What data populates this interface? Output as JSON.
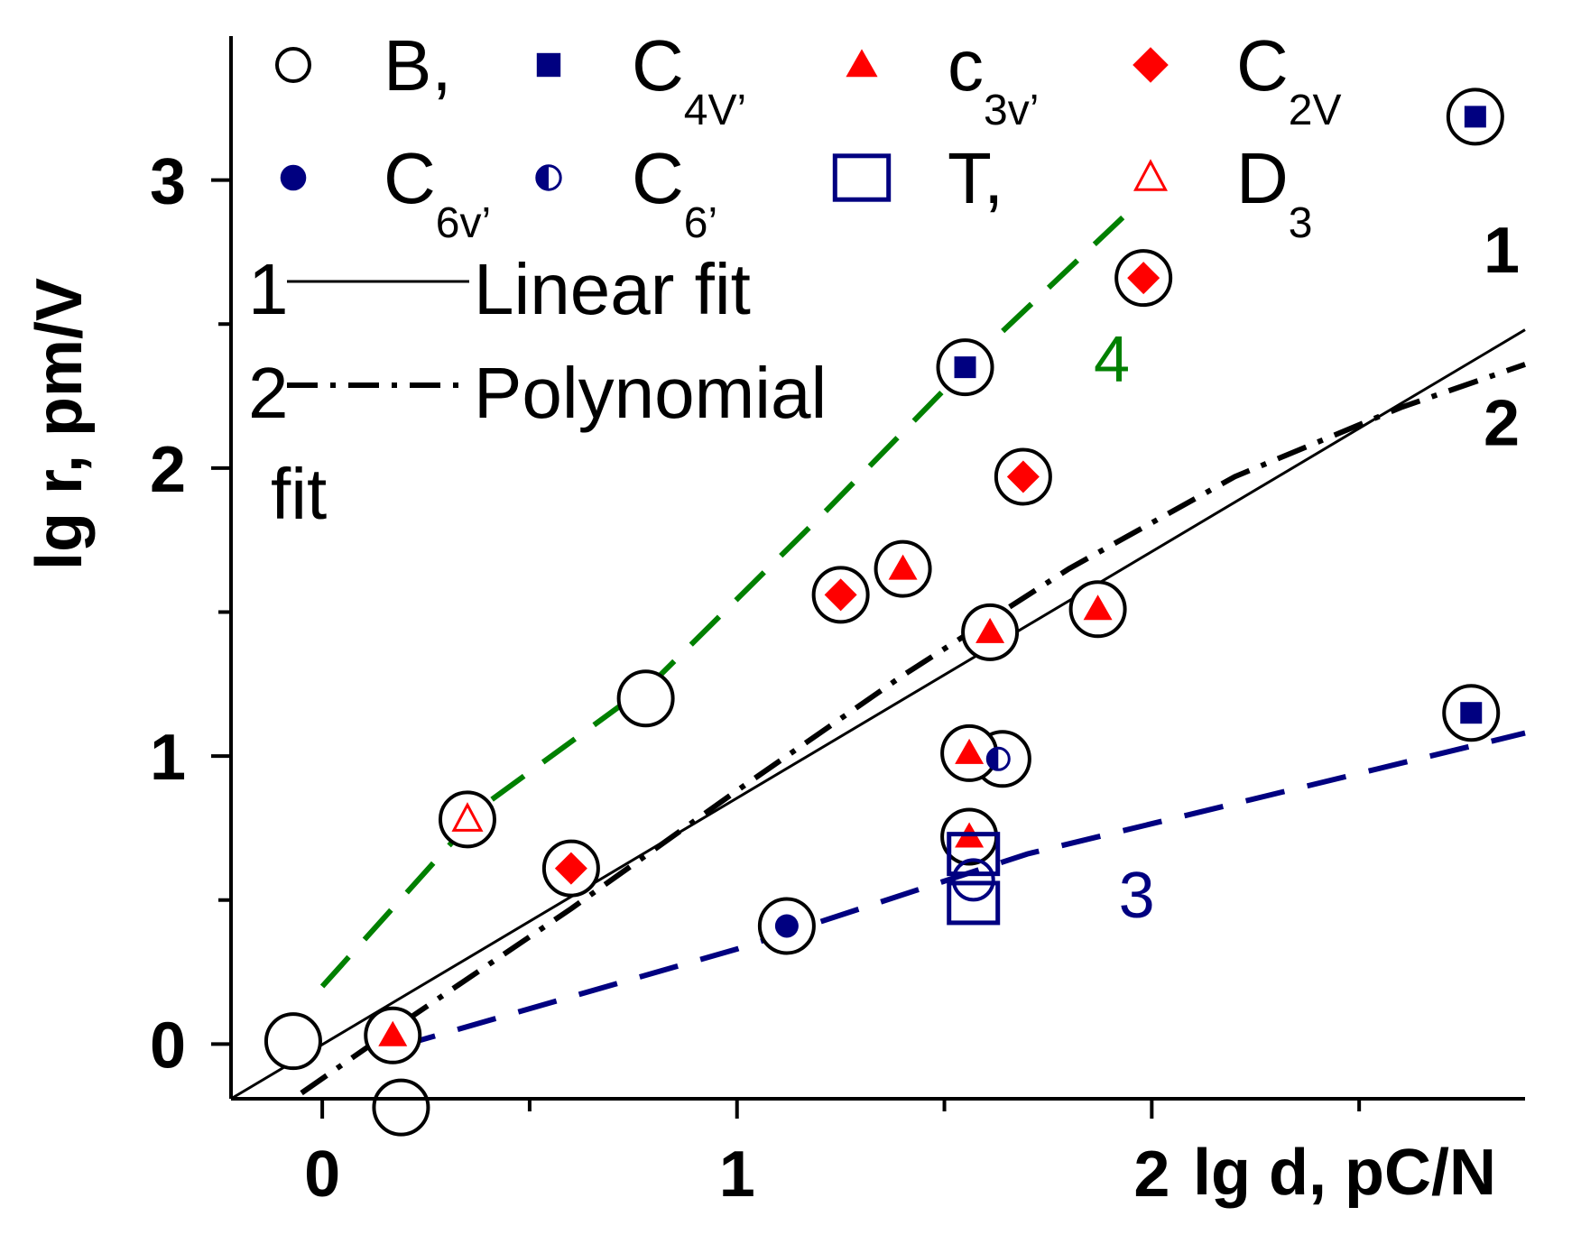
{
  "chart_data": {
    "type": "scatter",
    "xlabel": "lg d, pC/N",
    "ylabel": "lg r, pm/V",
    "xlim": [
      -0.22,
      2.9
    ],
    "ylim": [
      -0.19,
      3.5
    ],
    "x_ticks": [
      {
        "value": 0,
        "label": "0"
      },
      {
        "value": 1,
        "label": "1"
      },
      {
        "value": 2,
        "label": "2"
      }
    ],
    "y_ticks": [
      {
        "value": 0,
        "label": "0"
      },
      {
        "value": 1,
        "label": "1"
      },
      {
        "value": 2,
        "label": "2"
      },
      {
        "value": 3,
        "label": "3"
      }
    ],
    "x_minor": [
      0.5,
      1.5,
      2.5
    ],
    "y_minor": [
      0.5,
      1.5,
      2.5
    ],
    "grid": false,
    "legend": {
      "placement": "top-left",
      "symbols": [
        {
          "marker": "circle-open",
          "label": "B,",
          "sub": "",
          "color": "#000000"
        },
        {
          "marker": "square-filled",
          "label": "C",
          "sub": "4V’",
          "color": "#000080"
        },
        {
          "marker": "triangle-filled",
          "label": "c",
          "sub": "3v’",
          "color": "#ff0000"
        },
        {
          "marker": "diamond-filled",
          "label": "C",
          "sub": "2V",
          "color": "#ff0000"
        },
        {
          "marker": "circle-filled",
          "label": "C",
          "sub": "6v’",
          "color": "#000080"
        },
        {
          "marker": "circle-half",
          "label": "C",
          "sub": "6’",
          "color": "#000080"
        },
        {
          "marker": "square-open",
          "label": "T,",
          "sub": "",
          "color": "#000080"
        },
        {
          "marker": "triangle-open",
          "label": "D",
          "sub": "3",
          "color": "#ff0000"
        }
      ],
      "fit_lines": [
        {
          "num": "1",
          "label": "Linear fit"
        },
        {
          "num": "2",
          "label": "Polynomial"
        }
      ],
      "fit_suffix": "fit"
    },
    "colors": {
      "navy": "#000080",
      "red": "#ff0000",
      "green": "#008000",
      "black": "#000000"
    },
    "points": [
      {
        "x": -0.07,
        "y": 0.01,
        "ring": true,
        "marker": "none"
      },
      {
        "x": 0.19,
        "y": -0.22,
        "ring": true,
        "marker": "none"
      },
      {
        "x": 0.78,
        "y": 1.2,
        "ring": true,
        "marker": "none"
      },
      {
        "x": 1.64,
        "y": 0.99,
        "ring": true,
        "marker": "none"
      },
      {
        "x": 0.17,
        "y": 0.03,
        "ring": true,
        "marker": "triangle-filled"
      },
      {
        "x": 0.35,
        "y": 0.78,
        "ring": true,
        "marker": "triangle-open"
      },
      {
        "x": 0.6,
        "y": 0.61,
        "ring": true,
        "marker": "diamond-filled"
      },
      {
        "x": 1.12,
        "y": 0.41,
        "ring": true,
        "marker": "circle-filled"
      },
      {
        "x": 1.25,
        "y": 1.56,
        "ring": true,
        "marker": "diamond-filled"
      },
      {
        "x": 1.4,
        "y": 1.65,
        "ring": true,
        "marker": "triangle-filled"
      },
      {
        "x": 1.55,
        "y": 2.35,
        "ring": true,
        "marker": "square-filled"
      },
      {
        "x": 1.56,
        "y": 1.01,
        "ring": true,
        "marker": "triangle-filled"
      },
      {
        "x": 1.63,
        "y": 0.99,
        "ring": false,
        "marker": "circle-half"
      },
      {
        "x": 1.56,
        "y": 0.72,
        "ring": true,
        "marker": "triangle-filled"
      },
      {
        "x": 1.57,
        "y": 0.66,
        "ring": false,
        "marker": "square-open"
      },
      {
        "x": 1.57,
        "y": 0.49,
        "ring": false,
        "marker": "square-open"
      },
      {
        "x": 1.57,
        "y": 0.57,
        "ring": false,
        "marker": "circle-open-small"
      },
      {
        "x": 1.61,
        "y": 1.43,
        "ring": true,
        "marker": "triangle-filled"
      },
      {
        "x": 1.69,
        "y": 1.97,
        "ring": true,
        "marker": "diamond-filled"
      },
      {
        "x": 1.87,
        "y": 1.51,
        "ring": true,
        "marker": "triangle-filled"
      },
      {
        "x": 1.98,
        "y": 2.66,
        "ring": true,
        "marker": "diamond-filled"
      },
      {
        "x": 2.77,
        "y": 1.15,
        "ring": true,
        "marker": "square-filled"
      },
      {
        "x": 2.78,
        "y": 3.22,
        "ring": true,
        "marker": "square-filled"
      }
    ],
    "lines": [
      {
        "id": "1",
        "style": "solid",
        "color": "#000000",
        "points": [
          [
            -0.22,
            -0.19
          ],
          [
            2.9,
            2.48
          ]
        ],
        "label": "1",
        "label_at": [
          2.8,
          2.68
        ]
      },
      {
        "id": "2",
        "style": "dash-dot",
        "color": "#000000",
        "points": [
          [
            -0.05,
            -0.17
          ],
          [
            0.2,
            0.08
          ],
          [
            0.6,
            0.47
          ],
          [
            1.0,
            0.88
          ],
          [
            1.4,
            1.28
          ],
          [
            1.8,
            1.65
          ],
          [
            2.2,
            1.97
          ],
          [
            2.6,
            2.21
          ],
          [
            2.9,
            2.36
          ]
        ],
        "label": "2",
        "label_at": [
          2.8,
          2.08
        ]
      },
      {
        "id": "3",
        "style": "dashed",
        "color": "#000080",
        "points": [
          [
            0.18,
            -0.01
          ],
          [
            1.0,
            0.33
          ],
          [
            1.7,
            0.66
          ],
          [
            2.9,
            1.08
          ]
        ],
        "label": "3",
        "label_at": [
          1.92,
          0.44
        ]
      },
      {
        "id": "4",
        "style": "dashed",
        "color": "#008000",
        "points": [
          [
            0.0,
            0.2
          ],
          [
            0.4,
            0.84
          ],
          [
            0.8,
            1.26
          ],
          [
            1.2,
            1.83
          ],
          [
            1.6,
            2.42
          ],
          [
            1.93,
            2.87
          ]
        ],
        "label": "4",
        "label_at": [
          1.86,
          2.3
        ]
      }
    ]
  }
}
